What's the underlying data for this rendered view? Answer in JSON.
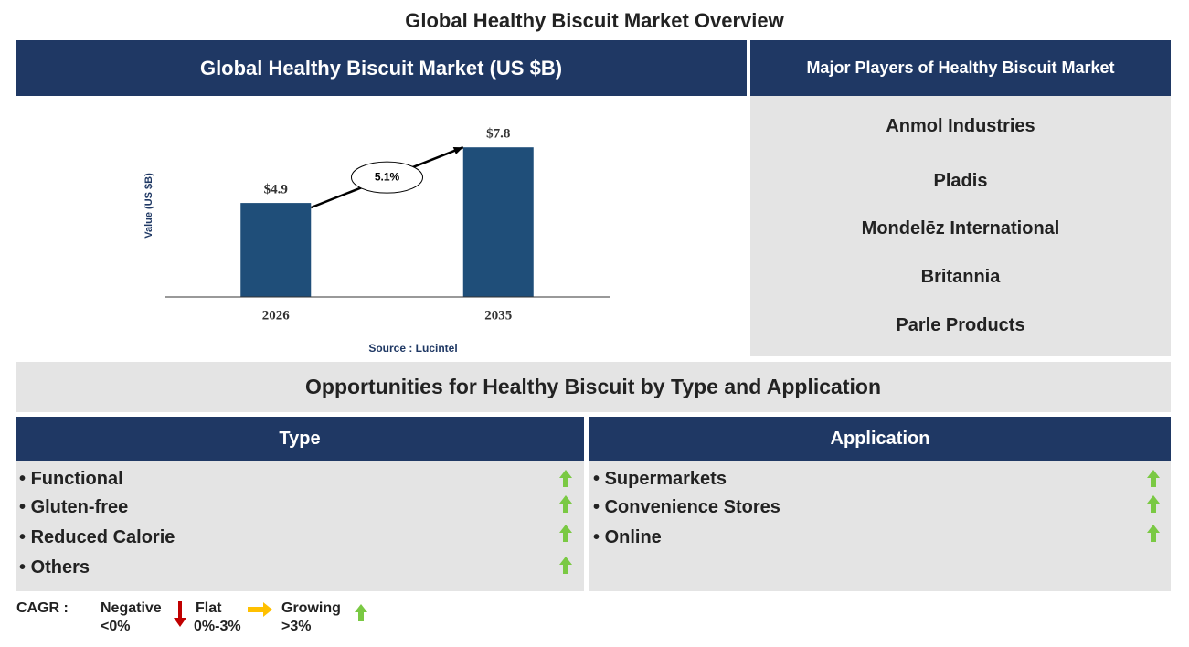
{
  "header": {
    "title": "Global Healthy Biscuit Market Overview"
  },
  "chart_data": {
    "type": "bar",
    "title": "Global Healthy Biscuit Market (US $B)",
    "y_label": "Value (US $B)",
    "categories": [
      "2026",
      "2035"
    ],
    "values": [
      4.9,
      7.8
    ],
    "value_labels": [
      "$4.9",
      "$7.8"
    ],
    "color": "#1f4e79",
    "ylim": [
      0,
      9
    ],
    "annotation": "5.1%",
    "source": "Source : Lucintel"
  },
  "players": {
    "title": "Major Players of Healthy Biscuit Market",
    "items": [
      "Anmol Industries",
      "Pladis",
      "Mondelēz International",
      "Britannia",
      "Parle Products"
    ]
  },
  "opportunities": {
    "title": "Opportunities for Healthy Biscuit by Type and Application",
    "type": {
      "title": "Type",
      "items": [
        "Functional",
        "Gluten-free",
        "Reduced Calorie",
        "Others"
      ]
    },
    "application": {
      "title": "Application",
      "items": [
        "Supermarkets",
        "Convenience Stores",
        "Online"
      ]
    }
  },
  "legend": {
    "label": "CAGR :",
    "negative": "Negative",
    "negative_range": "<0%",
    "flat": "Flat",
    "flat_range": "0%-3%",
    "growing": "Growing",
    "growing_range": ">3%"
  }
}
